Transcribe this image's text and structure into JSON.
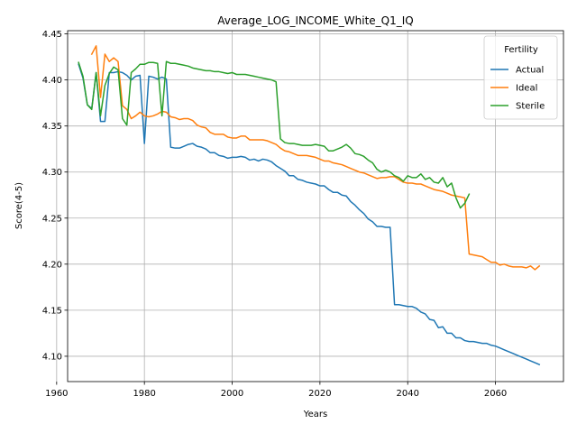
{
  "chart_data": {
    "type": "line",
    "title": "Average_LOG_INCOME_White_Q1_IQ",
    "xlabel": "Years",
    "ylabel": "Score(4-5)",
    "xlim": [
      1962.5,
      2075.5
    ],
    "ylim": [
      4.0725,
      4.4535
    ],
    "xticks": [
      1960,
      1980,
      2000,
      2020,
      2040,
      2060
    ],
    "yticks": [
      4.1,
      4.15,
      4.2,
      4.25,
      4.3,
      4.35,
      4.4,
      4.45
    ],
    "ytick_labels": [
      "4.10",
      "4.15",
      "4.20",
      "4.25",
      "4.30",
      "4.35",
      "4.40",
      "4.45"
    ],
    "grid": true,
    "legend": {
      "title": "Fertility",
      "placement": "top-right"
    },
    "series": [
      {
        "name": "Actual",
        "color": "#1f77b4",
        "points": [
          [
            1965,
            4.417
          ],
          [
            1966,
            4.402
          ],
          [
            1967,
            4.373
          ],
          [
            1968,
            4.369
          ],
          [
            1969,
            4.408
          ],
          [
            1970,
            4.355
          ],
          [
            1971,
            4.355
          ],
          [
            1972,
            4.408
          ],
          [
            1973,
            4.408
          ],
          [
            1974,
            4.409
          ],
          [
            1975,
            4.408
          ],
          [
            1976,
            4.405
          ],
          [
            1977,
            4.4
          ],
          [
            1978,
            4.404
          ],
          [
            1979,
            4.405
          ],
          [
            1980,
            4.331
          ],
          [
            1981,
            4.404
          ],
          [
            1982,
            4.403
          ],
          [
            1983,
            4.401
          ],
          [
            1984,
            4.403
          ],
          [
            1985,
            4.401
          ],
          [
            1986,
            4.327
          ],
          [
            1987,
            4.326
          ],
          [
            1988,
            4.326
          ],
          [
            1989,
            4.328
          ],
          [
            1990,
            4.33
          ],
          [
            1991,
            4.331
          ],
          [
            1992,
            4.328
          ],
          [
            1993,
            4.327
          ],
          [
            1994,
            4.325
          ],
          [
            1995,
            4.321
          ],
          [
            1996,
            4.321
          ],
          [
            1997,
            4.318
          ],
          [
            1998,
            4.317
          ],
          [
            1999,
            4.315
          ],
          [
            2000,
            4.316
          ],
          [
            2001,
            4.316
          ],
          [
            2002,
            4.317
          ],
          [
            2003,
            4.316
          ],
          [
            2004,
            4.313
          ],
          [
            2005,
            4.314
          ],
          [
            2006,
            4.312
          ],
          [
            2007,
            4.314
          ],
          [
            2008,
            4.313
          ],
          [
            2009,
            4.311
          ],
          [
            2010,
            4.307
          ],
          [
            2011,
            4.304
          ],
          [
            2012,
            4.301
          ],
          [
            2013,
            4.296
          ],
          [
            2014,
            4.296
          ],
          [
            2015,
            4.292
          ],
          [
            2016,
            4.291
          ],
          [
            2017,
            4.289
          ],
          [
            2018,
            4.288
          ],
          [
            2019,
            4.287
          ],
          [
            2020,
            4.285
          ],
          [
            2021,
            4.285
          ],
          [
            2022,
            4.281
          ],
          [
            2023,
            4.278
          ],
          [
            2024,
            4.278
          ],
          [
            2025,
            4.275
          ],
          [
            2026,
            4.274
          ],
          [
            2027,
            4.268
          ],
          [
            2028,
            4.264
          ],
          [
            2029,
            4.259
          ],
          [
            2030,
            4.255
          ],
          [
            2031,
            4.249
          ],
          [
            2032,
            4.246
          ],
          [
            2033,
            4.241
          ],
          [
            2034,
            4.241
          ],
          [
            2035,
            4.24
          ],
          [
            2036,
            4.24
          ],
          [
            2037,
            4.156
          ],
          [
            2038,
            4.156
          ],
          [
            2039,
            4.155
          ],
          [
            2040,
            4.154
          ],
          [
            2041,
            4.154
          ],
          [
            2042,
            4.152
          ],
          [
            2043,
            4.148
          ],
          [
            2044,
            4.146
          ],
          [
            2045,
            4.14
          ],
          [
            2046,
            4.139
          ],
          [
            2047,
            4.131
          ],
          [
            2048,
            4.132
          ],
          [
            2049,
            4.125
          ],
          [
            2050,
            4.125
          ],
          [
            2051,
            4.12
          ],
          [
            2052,
            4.12
          ],
          [
            2053,
            4.117
          ],
          [
            2054,
            4.116
          ],
          [
            2055,
            4.116
          ],
          [
            2056,
            4.115
          ],
          [
            2057,
            4.114
          ],
          [
            2058,
            4.114
          ],
          [
            2059,
            4.112
          ],
          [
            2060,
            4.111
          ],
          [
            2061,
            4.109
          ],
          [
            2062,
            4.107
          ],
          [
            2063,
            4.105
          ],
          [
            2064,
            4.103
          ],
          [
            2065,
            4.101
          ],
          [
            2066,
            4.099
          ],
          [
            2067,
            4.097
          ],
          [
            2068,
            4.095
          ],
          [
            2069,
            4.093
          ],
          [
            2070,
            4.091
          ]
        ]
      },
      {
        "name": "Ideal",
        "color": "#ff7f0e",
        "points": [
          [
            1968,
            4.428
          ],
          [
            1969,
            4.437
          ],
          [
            1970,
            4.381
          ],
          [
            1971,
            4.428
          ],
          [
            1972,
            4.42
          ],
          [
            1973,
            4.424
          ],
          [
            1974,
            4.42
          ],
          [
            1975,
            4.372
          ],
          [
            1976,
            4.368
          ],
          [
            1977,
            4.358
          ],
          [
            1978,
            4.361
          ],
          [
            1979,
            4.365
          ],
          [
            1980,
            4.361
          ],
          [
            1981,
            4.36
          ],
          [
            1982,
            4.361
          ],
          [
            1983,
            4.363
          ],
          [
            1984,
            4.366
          ],
          [
            1985,
            4.365
          ],
          [
            1986,
            4.36
          ],
          [
            1987,
            4.359
          ],
          [
            1988,
            4.357
          ],
          [
            1989,
            4.358
          ],
          [
            1990,
            4.358
          ],
          [
            1991,
            4.356
          ],
          [
            1992,
            4.351
          ],
          [
            1993,
            4.349
          ],
          [
            1994,
            4.348
          ],
          [
            1995,
            4.343
          ],
          [
            1996,
            4.341
          ],
          [
            1997,
            4.341
          ],
          [
            1998,
            4.341
          ],
          [
            1999,
            4.338
          ],
          [
            2000,
            4.337
          ],
          [
            2001,
            4.337
          ],
          [
            2002,
            4.339
          ],
          [
            2003,
            4.339
          ],
          [
            2004,
            4.335
          ],
          [
            2005,
            4.335
          ],
          [
            2006,
            4.335
          ],
          [
            2007,
            4.335
          ],
          [
            2008,
            4.334
          ],
          [
            2009,
            4.332
          ],
          [
            2010,
            4.33
          ],
          [
            2011,
            4.326
          ],
          [
            2012,
            4.323
          ],
          [
            2013,
            4.322
          ],
          [
            2014,
            4.32
          ],
          [
            2015,
            4.318
          ],
          [
            2016,
            4.318
          ],
          [
            2017,
            4.318
          ],
          [
            2018,
            4.317
          ],
          [
            2019,
            4.316
          ],
          [
            2020,
            4.314
          ],
          [
            2021,
            4.312
          ],
          [
            2022,
            4.312
          ],
          [
            2023,
            4.31
          ],
          [
            2024,
            4.309
          ],
          [
            2025,
            4.308
          ],
          [
            2026,
            4.306
          ],
          [
            2027,
            4.304
          ],
          [
            2028,
            4.302
          ],
          [
            2029,
            4.3
          ],
          [
            2030,
            4.299
          ],
          [
            2031,
            4.297
          ],
          [
            2032,
            4.295
          ],
          [
            2033,
            4.293
          ],
          [
            2034,
            4.294
          ],
          [
            2035,
            4.294
          ],
          [
            2036,
            4.295
          ],
          [
            2037,
            4.295
          ],
          [
            2038,
            4.292
          ],
          [
            2039,
            4.289
          ],
          [
            2040,
            4.288
          ],
          [
            2041,
            4.288
          ],
          [
            2042,
            4.287
          ],
          [
            2043,
            4.287
          ],
          [
            2044,
            4.285
          ],
          [
            2045,
            4.283
          ],
          [
            2046,
            4.281
          ],
          [
            2047,
            4.28
          ],
          [
            2048,
            4.279
          ],
          [
            2049,
            4.277
          ],
          [
            2050,
            4.275
          ],
          [
            2051,
            4.274
          ],
          [
            2052,
            4.273
          ],
          [
            2053,
            4.272
          ],
          [
            2054,
            4.211
          ],
          [
            2055,
            4.21
          ],
          [
            2056,
            4.209
          ],
          [
            2057,
            4.208
          ],
          [
            2058,
            4.205
          ],
          [
            2059,
            4.202
          ],
          [
            2060,
            4.202
          ],
          [
            2061,
            4.199
          ],
          [
            2062,
            4.2
          ],
          [
            2063,
            4.198
          ],
          [
            2064,
            4.197
          ],
          [
            2065,
            4.197
          ],
          [
            2066,
            4.197
          ],
          [
            2067,
            4.196
          ],
          [
            2068,
            4.198
          ],
          [
            2069,
            4.194
          ],
          [
            2070,
            4.198
          ]
        ]
      },
      {
        "name": "Sterile",
        "color": "#2ca02c",
        "points": [
          [
            1965,
            4.419
          ],
          [
            1966,
            4.404
          ],
          [
            1967,
            4.373
          ],
          [
            1968,
            4.368
          ],
          [
            1969,
            4.408
          ],
          [
            1970,
            4.361
          ],
          [
            1971,
            4.394
          ],
          [
            1972,
            4.407
          ],
          [
            1973,
            4.414
          ],
          [
            1974,
            4.411
          ],
          [
            1975,
            4.358
          ],
          [
            1976,
            4.351
          ],
          [
            1977,
            4.408
          ],
          [
            1978,
            4.412
          ],
          [
            1979,
            4.417
          ],
          [
            1980,
            4.417
          ],
          [
            1981,
            4.419
          ],
          [
            1982,
            4.419
          ],
          [
            1983,
            4.418
          ],
          [
            1984,
            4.361
          ],
          [
            1985,
            4.42
          ],
          [
            1986,
            4.418
          ],
          [
            1987,
            4.418
          ],
          [
            1988,
            4.417
          ],
          [
            1989,
            4.416
          ],
          [
            1990,
            4.415
          ],
          [
            1991,
            4.413
          ],
          [
            1992,
            4.412
          ],
          [
            1993,
            4.411
          ],
          [
            1994,
            4.41
          ],
          [
            1995,
            4.41
          ],
          [
            1996,
            4.409
          ],
          [
            1997,
            4.409
          ],
          [
            1998,
            4.408
          ],
          [
            1999,
            4.407
          ],
          [
            2000,
            4.408
          ],
          [
            2001,
            4.406
          ],
          [
            2002,
            4.406
          ],
          [
            2003,
            4.406
          ],
          [
            2004,
            4.405
          ],
          [
            2005,
            4.404
          ],
          [
            2006,
            4.403
          ],
          [
            2007,
            4.402
          ],
          [
            2008,
            4.401
          ],
          [
            2009,
            4.4
          ],
          [
            2010,
            4.398
          ],
          [
            2011,
            4.336
          ],
          [
            2012,
            4.332
          ],
          [
            2013,
            4.331
          ],
          [
            2014,
            4.331
          ],
          [
            2015,
            4.33
          ],
          [
            2016,
            4.329
          ],
          [
            2017,
            4.329
          ],
          [
            2018,
            4.329
          ],
          [
            2019,
            4.33
          ],
          [
            2020,
            4.329
          ],
          [
            2021,
            4.328
          ],
          [
            2022,
            4.323
          ],
          [
            2023,
            4.323
          ],
          [
            2024,
            4.325
          ],
          [
            2025,
            4.327
          ],
          [
            2026,
            4.33
          ],
          [
            2027,
            4.326
          ],
          [
            2028,
            4.32
          ],
          [
            2029,
            4.319
          ],
          [
            2030,
            4.317
          ],
          [
            2031,
            4.313
          ],
          [
            2032,
            4.31
          ],
          [
            2033,
            4.303
          ],
          [
            2034,
            4.3
          ],
          [
            2035,
            4.302
          ],
          [
            2036,
            4.3
          ],
          [
            2037,
            4.296
          ],
          [
            2038,
            4.294
          ],
          [
            2039,
            4.29
          ],
          [
            2040,
            4.296
          ],
          [
            2041,
            4.294
          ],
          [
            2042,
            4.294
          ],
          [
            2043,
            4.298
          ],
          [
            2044,
            4.292
          ],
          [
            2045,
            4.294
          ],
          [
            2046,
            4.289
          ],
          [
            2047,
            4.288
          ],
          [
            2048,
            4.294
          ],
          [
            2049,
            4.284
          ],
          [
            2050,
            4.288
          ],
          [
            2051,
            4.272
          ],
          [
            2052,
            4.261
          ],
          [
            2053,
            4.266
          ],
          [
            2054,
            4.276
          ]
        ]
      }
    ]
  }
}
